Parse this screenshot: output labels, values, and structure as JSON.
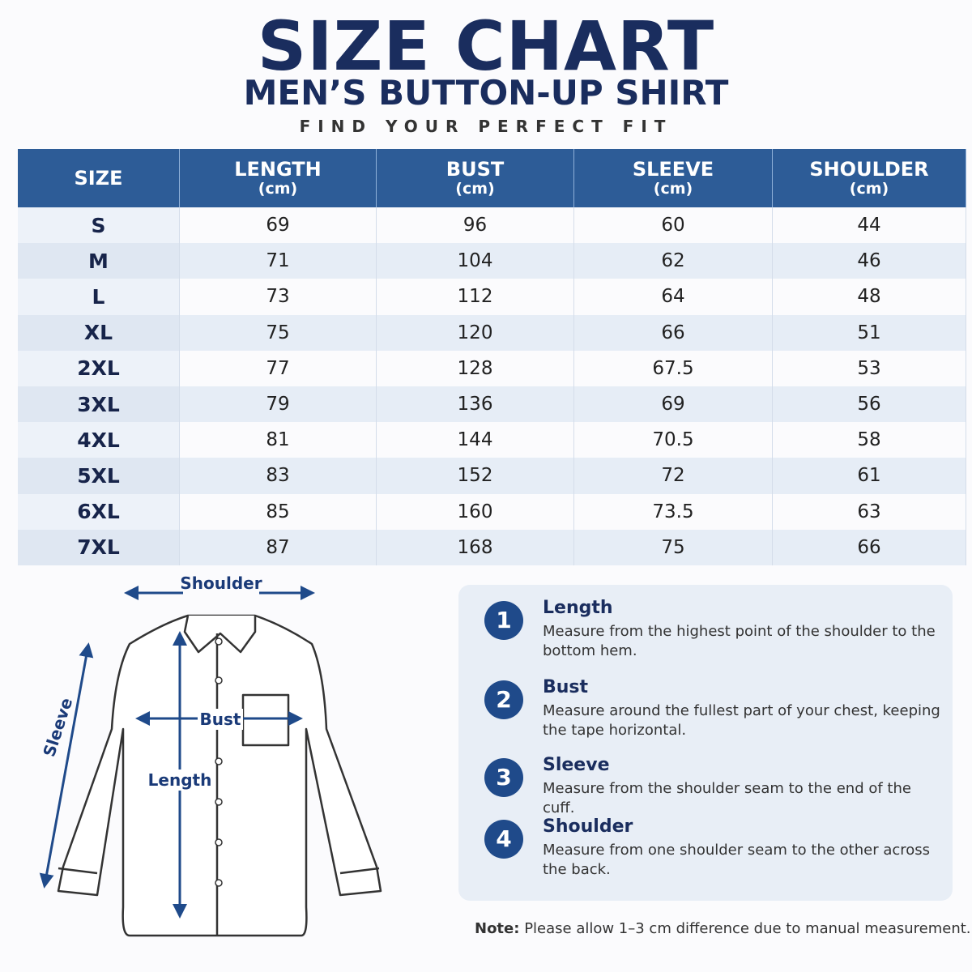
{
  "header": {
    "title": "SIZE CHART",
    "subtitle": "MEN’S BUTTON-UP SHIRT",
    "tagline": "FIND YOUR PERFECT FIT"
  },
  "table": {
    "columns": [
      {
        "name": "SIZE"
      },
      {
        "name": "LENGTH",
        "unit": "(cm)"
      },
      {
        "name": "BUST",
        "unit": "(cm)"
      },
      {
        "name": "SLEEVE",
        "unit": "(cm)"
      },
      {
        "name": "SHOULDER",
        "unit": "(cm)"
      }
    ],
    "rows": [
      [
        "S",
        "69",
        "96",
        "60",
        "44"
      ],
      [
        "M",
        "71",
        "104",
        "62",
        "46"
      ],
      [
        "L",
        "73",
        "112",
        "64",
        "48"
      ],
      [
        "XL",
        "75",
        "120",
        "66",
        "51"
      ],
      [
        "2XL",
        "77",
        "128",
        "67.5",
        "53"
      ],
      [
        "3XL",
        "79",
        "136",
        "69",
        "56"
      ],
      [
        "4XL",
        "81",
        "144",
        "70.5",
        "58"
      ],
      [
        "5XL",
        "83",
        "152",
        "72",
        "61"
      ],
      [
        "6XL",
        "85",
        "160",
        "73.5",
        "63"
      ],
      [
        "7XL",
        "87",
        "168",
        "75",
        "66"
      ]
    ]
  },
  "diagram": {
    "shoulder": "Shoulder",
    "sleeve": "Sleeve",
    "bust": "Bust",
    "length": "Length"
  },
  "instructions": [
    {
      "number": "1",
      "title": "Length",
      "text": "Measure from the highest point of the shoulder to the bottom hem."
    },
    {
      "number": "2",
      "title": "Bust",
      "text": "Measure around the fullest part of your chest, keeping the tape horizontal."
    },
    {
      "number": "3",
      "title": "Sleeve",
      "text": "Measure from the shoulder seam to the end of the cuff."
    },
    {
      "number": "4",
      "title": "Shoulder",
      "text": "Measure from one shoulder seam to the other across the back."
    }
  ],
  "note": {
    "label": "Note:",
    "text": "Please allow 1–3 cm difference due to manual measurement."
  }
}
